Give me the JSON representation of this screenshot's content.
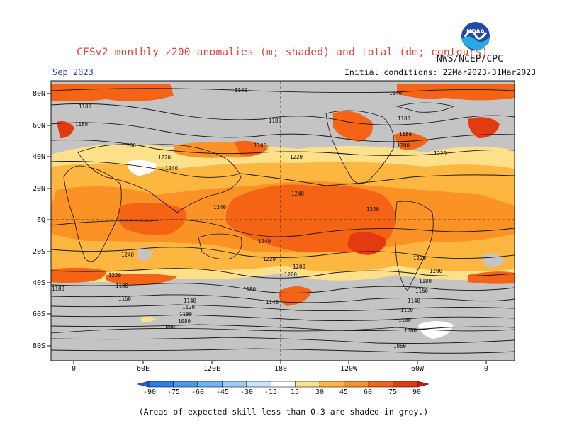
{
  "header": {
    "title": "CFSv2 monthly z200 anomalies (m; shaded) and total (dm; contours)",
    "agency": "NWS/NCEP/CPC",
    "month": "Sep 2023",
    "initial_conditions": "Initial conditions: 22Mar2023-31Mar2023"
  },
  "axes": {
    "lat_labels": [
      "80N",
      "60N",
      "40N",
      "20N",
      "EQ",
      "20S",
      "40S",
      "60S",
      "80S"
    ],
    "lon_labels": [
      "0",
      "60E",
      "120E",
      "180",
      "120W",
      "60W",
      "0"
    ]
  },
  "contour_labels": [
    "1140",
    "1140",
    "1180",
    "1180",
    "1180",
    "1180",
    "1180",
    "1200",
    "1200",
    "1200",
    "1220",
    "1220",
    "1220",
    "1240",
    "1240",
    "1240",
    "1240",
    "1240",
    "1240",
    "1220",
    "1220",
    "1220",
    "1200",
    "1200",
    "1200",
    "1180",
    "1180",
    "1180",
    "1180",
    "1160",
    "1160",
    "1140",
    "1140",
    "1140",
    "1120",
    "1120",
    "1100",
    "1100",
    "1080",
    "1080",
    "1060",
    "1060"
  ],
  "colorbar": {
    "tick_labels": [
      "-90",
      "-75",
      "-60",
      "-45",
      "-30",
      "-15",
      "15",
      "30",
      "45",
      "60",
      "75",
      "90"
    ],
    "colors": [
      "#1c5fe0",
      "#2b7cf0",
      "#4a96f5",
      "#70b2f7",
      "#9cccf9",
      "#c8e6fb",
      "#ffffff",
      "#fde08a",
      "#fdb63f",
      "#fb9225",
      "#f56314",
      "#e43a12",
      "#c41c10"
    ],
    "grey_color": "#c4c4c4"
  },
  "footnote": "(Areas of expected skill less than 0.3 are shaded in grey.)"
}
